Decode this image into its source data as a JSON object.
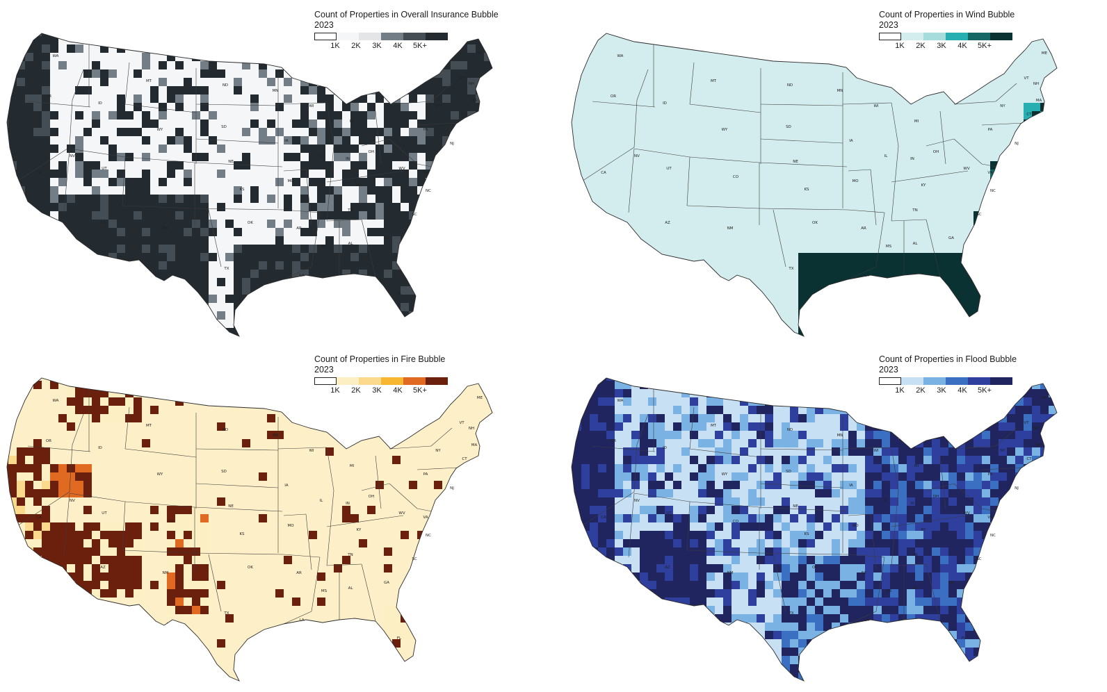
{
  "legend_ticks": [
    "1K",
    "2K",
    "3K",
    "4K",
    "5K+"
  ],
  "state_abbrs": [
    "WA",
    "OR",
    "CA",
    "ID",
    "NV",
    "MT",
    "WY",
    "UT",
    "AZ",
    "CO",
    "NM",
    "ND",
    "SD",
    "NE",
    "KS",
    "OK",
    "TX",
    "MN",
    "IA",
    "MO",
    "AR",
    "LA",
    "WI",
    "IL",
    "MI",
    "IN",
    "OH",
    "KY",
    "TN",
    "MS",
    "AL",
    "GA",
    "FL",
    "SC",
    "NC",
    "VA",
    "WV",
    "PA",
    "NY",
    "VT",
    "NH",
    "ME",
    "MA",
    "CT",
    "NJ"
  ],
  "maps": [
    {
      "title": "Count of Properties in Overall Insurance Bubble",
      "year": "2023",
      "colors": [
        "#ffffff",
        "#f5f6f7",
        "#e3e5e7",
        "#737d86",
        "#444c54",
        "#232a30"
      ],
      "base": "#f2f3f4",
      "icon": "us-county-choropleth-overall"
    },
    {
      "title": "Count of Properties in Wind Bubble",
      "year": "2023",
      "colors": [
        "#ffffff",
        "#d3ecee",
        "#a6dcdc",
        "#27aeb0",
        "#156766",
        "#0b3232"
      ],
      "base": "#d3ecee",
      "icon": "us-county-choropleth-wind"
    },
    {
      "title": "Count of Properties in Fire Bubble",
      "year": "2023",
      "colors": [
        "#ffffff",
        "#fdefc4",
        "#fbda8e",
        "#f8b731",
        "#e06a22",
        "#6a200d"
      ],
      "base": "#fdf0c8",
      "icon": "us-county-choropleth-fire"
    },
    {
      "title": "Count of Properties in Flood Bubble",
      "year": "2023",
      "colors": [
        "#ffffff",
        "#c8e0f3",
        "#79b2e3",
        "#3a6fc1",
        "#2e3f9e",
        "#21255f"
      ],
      "base": "#a9cdec",
      "icon": "us-county-choropleth-flood"
    }
  ]
}
